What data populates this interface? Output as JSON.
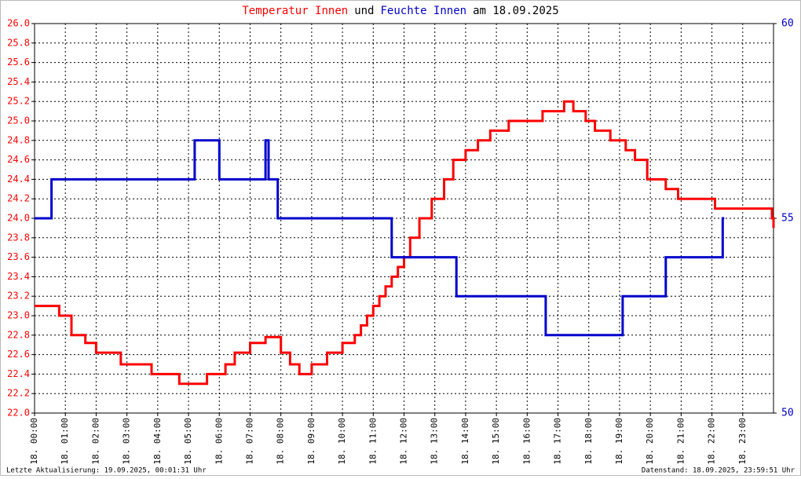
{
  "chart_data": {
    "type": "line",
    "step": "post",
    "title_parts": [
      {
        "text": "Temperatur Innen",
        "color": "#ff0000"
      },
      {
        "text": "und",
        "color": "#000000"
      },
      {
        "text": "Feuchte Innen",
        "color": "#0000cc"
      },
      {
        "text": "am 18.09.2025",
        "color": "#000000"
      }
    ],
    "xlim": [
      0,
      24
    ],
    "xticks": [
      {
        "value": 0,
        "label": "18. 00:00"
      },
      {
        "value": 1,
        "label": "18. 01:00"
      },
      {
        "value": 2,
        "label": "18. 02:00"
      },
      {
        "value": 3,
        "label": "18. 03:00"
      },
      {
        "value": 4,
        "label": "18. 04:00"
      },
      {
        "value": 5,
        "label": "18. 05:00"
      },
      {
        "value": 6,
        "label": "18. 06:00"
      },
      {
        "value": 7,
        "label": "18. 07:00"
      },
      {
        "value": 8,
        "label": "18. 08:00"
      },
      {
        "value": 9,
        "label": "18. 09:00"
      },
      {
        "value": 10,
        "label": "18. 10:00"
      },
      {
        "value": 11,
        "label": "18. 11:00"
      },
      {
        "value": 12,
        "label": "18. 12:00"
      },
      {
        "value": 13,
        "label": "18. 13:00"
      },
      {
        "value": 14,
        "label": "18. 14:00"
      },
      {
        "value": 15,
        "label": "18. 15:00"
      },
      {
        "value": 16,
        "label": "18. 16:00"
      },
      {
        "value": 17,
        "label": "18. 17:00"
      },
      {
        "value": 18,
        "label": "18. 18:00"
      },
      {
        "value": 19,
        "label": "18. 19:00"
      },
      {
        "value": 20,
        "label": "18. 20:00"
      },
      {
        "value": 21,
        "label": "18. 21:00"
      },
      {
        "value": 22,
        "label": "18. 22:00"
      },
      {
        "value": 23,
        "label": "18. 23:00"
      }
    ],
    "ylim": [
      22.0,
      26.0
    ],
    "yticks": [
      {
        "value": 22.0,
        "label": "22.0"
      },
      {
        "value": 22.2,
        "label": "22.2"
      },
      {
        "value": 22.4,
        "label": "22.4"
      },
      {
        "value": 22.6,
        "label": "22.6"
      },
      {
        "value": 22.8,
        "label": "22.8"
      },
      {
        "value": 23.0,
        "label": "23.0"
      },
      {
        "value": 23.2,
        "label": "23.2"
      },
      {
        "value": 23.4,
        "label": "23.4"
      },
      {
        "value": 23.6,
        "label": "23.6"
      },
      {
        "value": 23.8,
        "label": "23.8"
      },
      {
        "value": 24.0,
        "label": "24.0"
      },
      {
        "value": 24.2,
        "label": "24.2"
      },
      {
        "value": 24.4,
        "label": "24.4"
      },
      {
        "value": 24.6,
        "label": "24.6"
      },
      {
        "value": 24.8,
        "label": "24.8"
      },
      {
        "value": 25.0,
        "label": "25.0"
      },
      {
        "value": 25.2,
        "label": "25.2"
      },
      {
        "value": 25.4,
        "label": "25.4"
      },
      {
        "value": 25.6,
        "label": "25.6"
      },
      {
        "value": 25.8,
        "label": "25.8"
      },
      {
        "value": 26.0,
        "label": "26.0"
      }
    ],
    "y_color": "#ff0000",
    "y2lim": [
      50,
      60
    ],
    "y2ticks": [
      50,
      55,
      60
    ],
    "y2_color": "#0000cc",
    "grid": true,
    "series": [
      {
        "name": "Temperatur Innen",
        "color": "#ff0000",
        "x": [
          0,
          0.8,
          1.2,
          1.65,
          2.0,
          2.8,
          3.8,
          4.7,
          5.6,
          6.2,
          6.5,
          7.0,
          7.5,
          8.0,
          8.3,
          8.6,
          9.0,
          9.5,
          10.0,
          10.4,
          10.6,
          10.8,
          11.0,
          11.2,
          11.4,
          11.6,
          11.8,
          12.0,
          12.2,
          12.5,
          12.9,
          13.3,
          13.6,
          14.0,
          14.4,
          14.8,
          15.4,
          16.5,
          17.2,
          17.5,
          17.9,
          18.2,
          18.7,
          19.2,
          19.5,
          19.9,
          20.5,
          20.9,
          22.1,
          23.95,
          24
        ],
        "values": [
          23.1,
          23.0,
          22.8,
          22.72,
          22.62,
          22.5,
          22.4,
          22.3,
          22.4,
          22.5,
          22.62,
          22.72,
          22.78,
          22.62,
          22.5,
          22.4,
          22.5,
          22.62,
          22.72,
          22.8,
          22.9,
          23.0,
          23.1,
          23.2,
          23.3,
          23.4,
          23.5,
          23.6,
          23.8,
          24.0,
          24.2,
          24.4,
          24.6,
          24.7,
          24.8,
          24.9,
          25.0,
          25.1,
          25.2,
          25.1,
          25.0,
          24.9,
          24.8,
          24.7,
          24.6,
          24.4,
          24.3,
          24.2,
          24.1,
          24.0,
          23.9
        ]
      },
      {
        "name": "Feuchte Innen",
        "color": "#0000cc",
        "axis": "y2",
        "x": [
          0,
          0.55,
          5.2,
          6.0,
          7.5,
          7.6,
          7.9,
          11.6,
          13.7,
          16.6,
          19.1,
          20.5,
          22.35,
          22.4
        ],
        "values": [
          55,
          56,
          57,
          56,
          57,
          56,
          55,
          54,
          53,
          52,
          53,
          54,
          55,
          55
        ]
      }
    ]
  },
  "footer": {
    "left": "Letzte Aktualisierung: 19.09.2025, 00:01:31 Uhr",
    "right": "Datenstand: 18.09.2025, 23:59:51 Uhr"
  }
}
